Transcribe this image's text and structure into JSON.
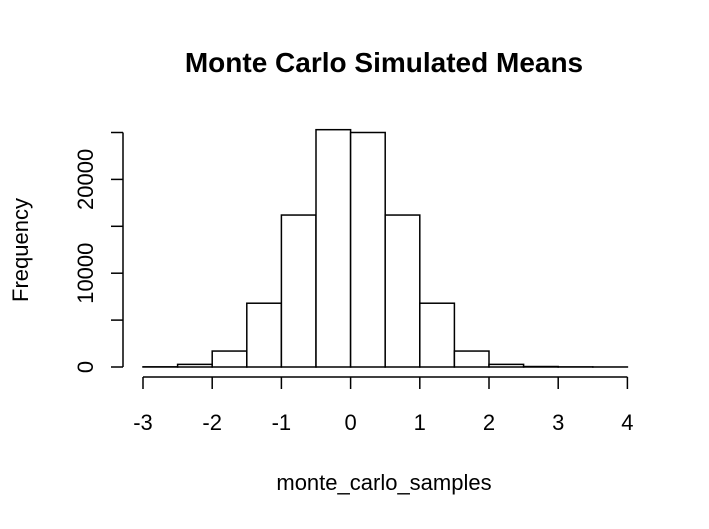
{
  "chart_data": {
    "type": "bar",
    "title": "Monte Carlo Simulated Means",
    "xlabel": "monte_carlo_samples",
    "ylabel": "Frequency",
    "bin_edges": [
      -3,
      -2.5,
      -2,
      -1.5,
      -1,
      -0.5,
      0,
      0.5,
      1,
      1.5,
      2,
      2.5,
      3,
      3.5,
      4
    ],
    "values": [
      20,
      280,
      1700,
      6800,
      16200,
      25300,
      25000,
      16200,
      6800,
      1700,
      280,
      50,
      15,
      3
    ],
    "xlim": [
      -3,
      4
    ],
    "ylim": [
      0,
      25000
    ],
    "xticks": [
      "-3",
      "-2",
      "-1",
      "0",
      "1",
      "2",
      "3",
      "4"
    ],
    "yticks": [
      "0",
      "10000",
      "20000"
    ],
    "grid": false,
    "colors": {
      "bar_fill": "#ffffff",
      "bar_stroke": "#000000"
    }
  }
}
